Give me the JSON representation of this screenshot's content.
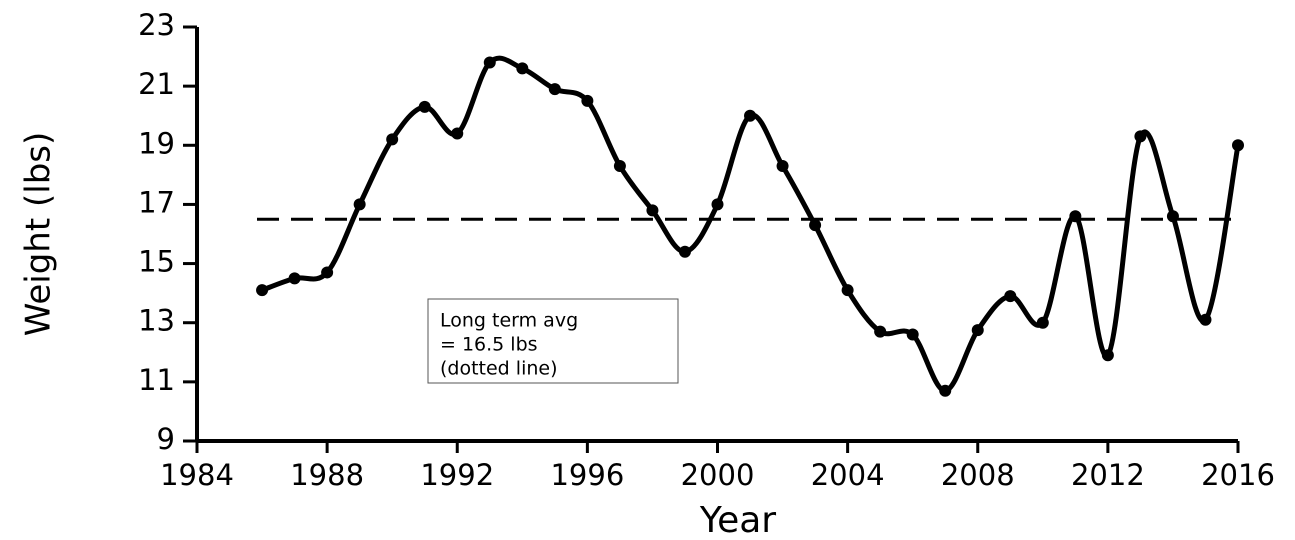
{
  "chart_data": {
    "type": "line",
    "x_label": "Year",
    "y_label": "Weight (lbs)",
    "x": [
      1986,
      1987,
      1988,
      1989,
      1990,
      1991,
      1992,
      1993,
      1994,
      1995,
      1996,
      1997,
      1998,
      1999,
      2000,
      2001,
      2002,
      2003,
      2004,
      2005,
      2006,
      2007,
      2008,
      2009,
      2010,
      2011,
      2012,
      2013,
      2014,
      2015,
      2016
    ],
    "values": [
      14.1,
      14.5,
      14.7,
      17.0,
      19.2,
      20.3,
      19.4,
      21.8,
      21.6,
      20.9,
      20.5,
      18.3,
      16.8,
      15.4,
      17.0,
      20.0,
      18.3,
      16.3,
      14.1,
      12.7,
      12.6,
      10.7,
      12.75,
      13.9,
      13.0,
      16.6,
      11.9,
      19.3,
      16.6,
      13.1,
      19.0
    ],
    "color": "#000000",
    "reference_line": 16.5,
    "annotation": [
      "Long term avg",
      "= 16.5 lbs",
      "(dotted line)"
    ],
    "xlim": [
      1984,
      2016
    ],
    "xticks": [
      1984,
      1988,
      1992,
      1996,
      2000,
      2004,
      2008,
      2012,
      2016
    ],
    "ylim": [
      9,
      23
    ],
    "yticks": [
      9,
      11,
      13,
      15,
      17,
      19,
      21,
      23
    ]
  }
}
